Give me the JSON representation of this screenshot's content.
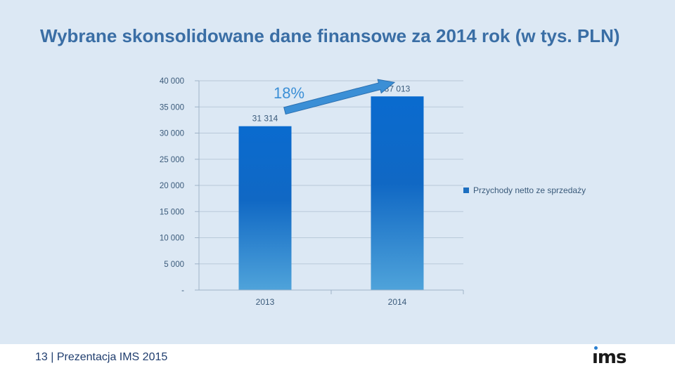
{
  "title": "Wybrane skonsolidowane dane finansowe za 2014 rok (w tys. PLN)",
  "footer": "13 | Prezentacja IMS 2015",
  "logo": "ims",
  "colors": {
    "bar_top": "#0a6bcf",
    "bar_bottom": "#4a9fd8",
    "arrow": "#3b8fd6",
    "title": "#3a6ea5",
    "background": "#dce8f4"
  },
  "chart_data": {
    "type": "bar",
    "categories": [
      "2013",
      "2014"
    ],
    "series": [
      {
        "name": "Przychody netto ze sprzedaży",
        "values": [
          31314,
          37013
        ]
      }
    ],
    "data_labels": [
      "31 314",
      "37 013"
    ],
    "ytick_labels": [
      "-",
      "5 000",
      "10 000",
      "15 000",
      "20 000",
      "25 000",
      "30 000",
      "35 000",
      "40 000"
    ],
    "ylim": [
      0,
      40000
    ],
    "growth_annotation": "18%",
    "legend_position": "right",
    "grid": true
  }
}
